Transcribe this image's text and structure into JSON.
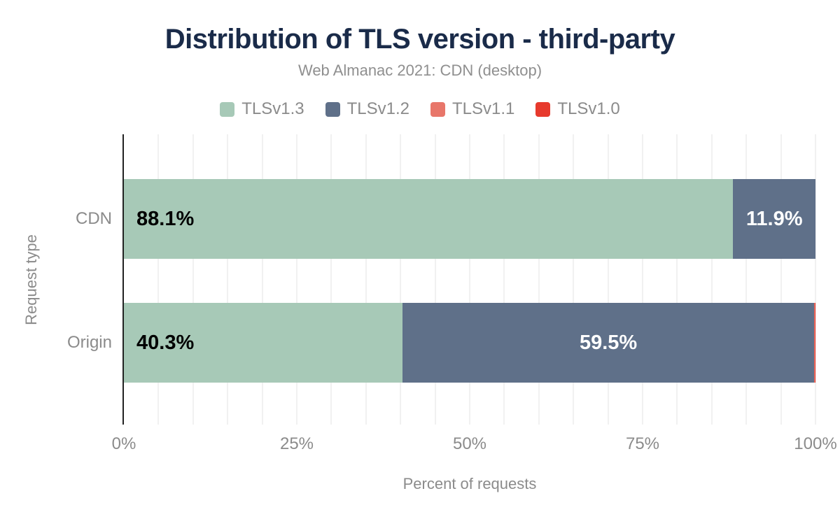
{
  "title": "Distribution of TLS version - third-party",
  "subtitle": "Web Almanac 2021: CDN (desktop)",
  "colors": {
    "title_text": "#1a2b49",
    "secondary_text": "#8b8b8b",
    "axis_line": "#222222",
    "gridline": "#f1f1f1",
    "background": "#ffffff"
  },
  "chart_data": {
    "type": "bar",
    "orientation": "horizontal",
    "stacked": true,
    "title": "Distribution of TLS version - third-party",
    "subtitle": "Web Almanac 2021: CDN (desktop)",
    "xlabel": "Percent of requests",
    "ylabel": "Request type",
    "xlim": [
      0,
      100
    ],
    "x_ticks": [
      "0%",
      "25%",
      "50%",
      "75%",
      "100%"
    ],
    "x_tick_values": [
      0,
      25,
      50,
      75,
      100
    ],
    "grid_step": 5,
    "grid_on": true,
    "legend_position": "top",
    "categories": [
      "CDN",
      "Origin"
    ],
    "series": [
      {
        "name": "TLSv1.3",
        "color": "#a7c9b7",
        "label_color": "#000000",
        "label_align": "start",
        "values": [
          88.1,
          40.3
        ],
        "value_labels": [
          "88.1%",
          "40.3%"
        ]
      },
      {
        "name": "TLSv1.2",
        "color": "#5f7089",
        "label_color": "#ffffff",
        "label_align": "center",
        "values": [
          11.9,
          59.5
        ],
        "value_labels": [
          "11.9%",
          "59.5%"
        ]
      },
      {
        "name": "TLSv1.1",
        "color": "#e8766a",
        "label_color": "#ffffff",
        "label_align": "center",
        "values": [
          0,
          0.1
        ],
        "value_labels": [
          "",
          ""
        ]
      },
      {
        "name": "TLSv1.0",
        "color": "#e73a2d",
        "label_color": "#ffffff",
        "label_align": "center",
        "values": [
          0,
          0.1
        ],
        "value_labels": [
          "",
          ""
        ]
      }
    ]
  }
}
